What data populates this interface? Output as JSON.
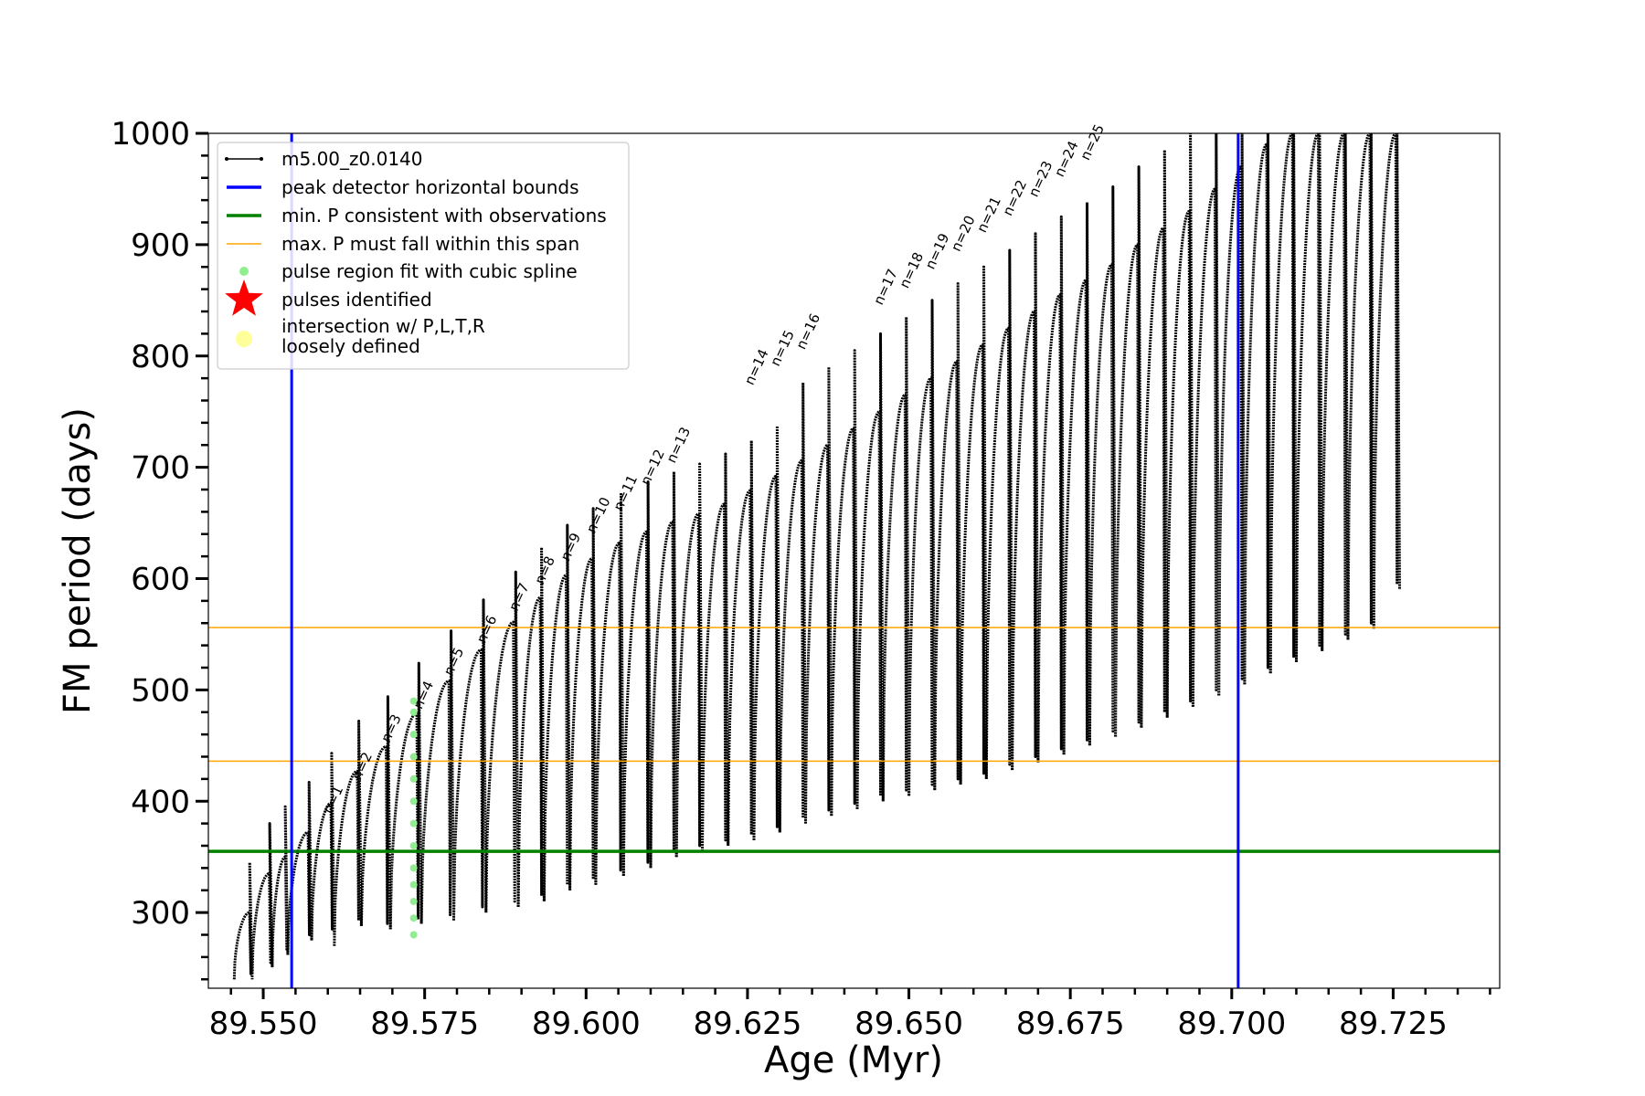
{
  "chart_data": {
    "type": "line",
    "xlabel": "Age (Myr)",
    "ylabel": "FM period (days)",
    "xlim": [
      89.5415,
      89.7415
    ],
    "ylim": [
      232,
      1000
    ],
    "xticks": [
      89.55,
      89.575,
      89.6,
      89.625,
      89.65,
      89.675,
      89.7,
      89.725
    ],
    "xtick_labels": [
      "89.550",
      "89.575",
      "89.600",
      "89.625",
      "89.650",
      "89.675",
      "89.700",
      "89.725"
    ],
    "xminor_step": 0.005,
    "yticks": [
      300,
      400,
      500,
      600,
      700,
      800,
      900,
      1000
    ],
    "ytick_labels": [
      "300",
      "400",
      "500",
      "600",
      "700",
      "800",
      "900",
      "1000"
    ],
    "yminor_step": 20,
    "legend_position": "upper-left",
    "legend": [
      {
        "label": "m5.00_z0.0140",
        "kind": "line-marker",
        "color": "#000000"
      },
      {
        "label": "peak detector horizontal bounds",
        "kind": "line",
        "color": "#0000ff"
      },
      {
        "label": "min. P consistent with observations",
        "kind": "line",
        "color": "#008000"
      },
      {
        "label": "max. P must fall within this span",
        "kind": "thin-line",
        "color": "#ffa500"
      },
      {
        "label": "pulse region fit with cubic spline",
        "kind": "dot",
        "color": "#90ee90"
      },
      {
        "label": "pulses identified",
        "kind": "star",
        "color": "#ff0000"
      },
      {
        "label": "intersection w/ P,L,T,R",
        "label2": "loosely defined",
        "kind": "big-dot",
        "color": "#ffff99"
      }
    ],
    "vertical_lines": {
      "color": "#0000ff",
      "x": [
        89.5544,
        89.701
      ]
    },
    "min_p_line": {
      "color": "#008000",
      "y": 355
    },
    "max_p_span": {
      "color": "#ffa500",
      "y": [
        436,
        556
      ]
    },
    "series_color": "#000000",
    "intersection_color": "#ffff00",
    "spline_color": "#90ee90",
    "pulses": [
      {
        "start": 89.5455,
        "end": 89.5483,
        "p0": 240,
        "peak": 300,
        "low": 240
      },
      {
        "start": 89.5483,
        "end": 89.5514,
        "p0": 245,
        "peak": 335,
        "low": 250
      },
      {
        "start": 89.5514,
        "end": 89.5538,
        "p0": 252,
        "peak": 350,
        "low": 262
      },
      {
        "start": 89.5538,
        "end": 89.5575,
        "p0": 262,
        "peak": 372,
        "low": 275
      },
      {
        "start": 89.5575,
        "end": 89.561,
        "p0": 275,
        "peak": 398,
        "low": 280
      },
      {
        "start": 89.561,
        "end": 89.5652,
        "p0": 270,
        "peak": 427,
        "low": 288
      },
      {
        "start": 89.5652,
        "end": 89.5697,
        "p0": 288,
        "peak": 449,
        "low": 285
      },
      {
        "start": 89.5697,
        "end": 89.5745,
        "p0": 285,
        "peak": 479,
        "low": 290
      },
      {
        "start": 89.5745,
        "end": 89.5795,
        "p0": 290,
        "peak": 508,
        "low": 293
      },
      {
        "start": 89.5795,
        "end": 89.5845,
        "p0": 293,
        "peak": 536,
        "low": 300
      },
      {
        "start": 89.5845,
        "end": 89.5895,
        "p0": 300,
        "peak": 561,
        "low": 305
      },
      {
        "start": 89.5895,
        "end": 89.5935,
        "p0": 305,
        "peak": 583,
        "low": 310
      },
      {
        "start": 89.5935,
        "end": 89.5975,
        "p0": 310,
        "peak": 603,
        "low": 320
      },
      {
        "start": 89.5975,
        "end": 89.6015,
        "p0": 320,
        "peak": 618,
        "low": 325
      },
      {
        "start": 89.6015,
        "end": 89.6058,
        "p0": 325,
        "peak": 632,
        "low": 333
      },
      {
        "start": 89.6058,
        "end": 89.61,
        "p0": 333,
        "peak": 642,
        "low": 340
      },
      {
        "start": 89.61,
        "end": 89.614,
        "p0": 340,
        "peak": 651,
        "low": 350
      },
      {
        "start": 89.614,
        "end": 89.618,
        "p0": 350,
        "peak": 658,
        "low": 355
      },
      {
        "start": 89.618,
        "end": 89.622,
        "p0": 355,
        "peak": 667,
        "low": 360
      },
      {
        "start": 89.622,
        "end": 89.626,
        "p0": 360,
        "peak": 679,
        "low": 365
      },
      {
        "start": 89.626,
        "end": 89.63,
        "p0": 365,
        "peak": 692,
        "low": 372
      },
      {
        "start": 89.63,
        "end": 89.634,
        "p0": 372,
        "peak": 706,
        "low": 380
      },
      {
        "start": 89.634,
        "end": 89.638,
        "p0": 380,
        "peak": 720,
        "low": 387
      },
      {
        "start": 89.638,
        "end": 89.642,
        "p0": 387,
        "peak": 735,
        "low": 393
      },
      {
        "start": 89.642,
        "end": 89.646,
        "p0": 393,
        "peak": 750,
        "low": 400
      },
      {
        "start": 89.646,
        "end": 89.65,
        "p0": 400,
        "peak": 765,
        "low": 405
      },
      {
        "start": 89.65,
        "end": 89.654,
        "p0": 405,
        "peak": 780,
        "low": 410
      },
      {
        "start": 89.654,
        "end": 89.658,
        "p0": 410,
        "peak": 795,
        "low": 415
      },
      {
        "start": 89.658,
        "end": 89.662,
        "p0": 415,
        "peak": 810,
        "low": 420
      },
      {
        "start": 89.662,
        "end": 89.666,
        "p0": 420,
        "peak": 825,
        "low": 428
      },
      {
        "start": 89.666,
        "end": 89.67,
        "p0": 428,
        "peak": 840,
        "low": 435
      },
      {
        "start": 89.67,
        "end": 89.674,
        "p0": 435,
        "peak": 855,
        "low": 442
      },
      {
        "start": 89.674,
        "end": 89.678,
        "p0": 442,
        "peak": 868,
        "low": 450
      },
      {
        "start": 89.678,
        "end": 89.682,
        "p0": 450,
        "peak": 882,
        "low": 458
      },
      {
        "start": 89.682,
        "end": 89.686,
        "p0": 458,
        "peak": 900,
        "low": 466
      },
      {
        "start": 89.686,
        "end": 89.69,
        "p0": 466,
        "peak": 915,
        "low": 475
      },
      {
        "start": 89.69,
        "end": 89.694,
        "p0": 475,
        "peak": 930,
        "low": 485
      },
      {
        "start": 89.694,
        "end": 89.698,
        "p0": 485,
        "peak": 950,
        "low": 495
      },
      {
        "start": 89.698,
        "end": 89.702,
        "p0": 495,
        "peak": 970,
        "low": 505
      },
      {
        "start": 89.702,
        "end": 89.706,
        "p0": 505,
        "peak": 990,
        "low": 515
      },
      {
        "start": 89.706,
        "end": 89.71,
        "p0": 515,
        "peak": 1000,
        "low": 525
      },
      {
        "start": 89.71,
        "end": 89.714,
        "p0": 525,
        "peak": 1000,
        "low": 535
      },
      {
        "start": 89.714,
        "end": 89.718,
        "p0": 535,
        "peak": 1000,
        "low": 545
      },
      {
        "start": 89.718,
        "end": 89.722,
        "p0": 545,
        "peak": 1000,
        "low": 555
      },
      {
        "start": 89.722,
        "end": 89.726,
        "p0": 555,
        "peak": 1000,
        "low": 590
      }
    ],
    "annotations": [
      {
        "text": "n=1",
        "x": 89.5605,
        "y": 388
      },
      {
        "text": "n=2",
        "x": 89.565,
        "y": 418
      },
      {
        "text": "n=3",
        "x": 89.5695,
        "y": 452
      },
      {
        "text": "n=4",
        "x": 89.5745,
        "y": 482
      },
      {
        "text": "n=5",
        "x": 89.5792,
        "y": 512
      },
      {
        "text": "n=6",
        "x": 89.5843,
        "y": 541
      },
      {
        "text": "n=7",
        "x": 89.5893,
        "y": 570
      },
      {
        "text": "n=8",
        "x": 89.5933,
        "y": 594
      },
      {
        "text": "n=9",
        "x": 89.5973,
        "y": 615
      },
      {
        "text": "n=10",
        "x": 89.6013,
        "y": 640
      },
      {
        "text": "n=11",
        "x": 89.6055,
        "y": 660
      },
      {
        "text": "n=12",
        "x": 89.6097,
        "y": 683
      },
      {
        "text": "n=13",
        "x": 89.6137,
        "y": 703
      },
      {
        "text": "n=14",
        "x": 89.6258,
        "y": 773
      },
      {
        "text": "n=15",
        "x": 89.6298,
        "y": 790
      },
      {
        "text": "n=16",
        "x": 89.6338,
        "y": 805
      },
      {
        "text": "n=17",
        "x": 89.6458,
        "y": 845
      },
      {
        "text": "n=18",
        "x": 89.6498,
        "y": 860
      },
      {
        "text": "n=19",
        "x": 89.6538,
        "y": 877
      },
      {
        "text": "n=20",
        "x": 89.6578,
        "y": 893
      },
      {
        "text": "n=21",
        "x": 89.6618,
        "y": 910
      },
      {
        "text": "n=22",
        "x": 89.6658,
        "y": 925
      },
      {
        "text": "n=23",
        "x": 89.6698,
        "y": 942
      },
      {
        "text": "n=24",
        "x": 89.6738,
        "y": 960
      },
      {
        "text": "n=25",
        "x": 89.6778,
        "y": 975
      }
    ]
  }
}
